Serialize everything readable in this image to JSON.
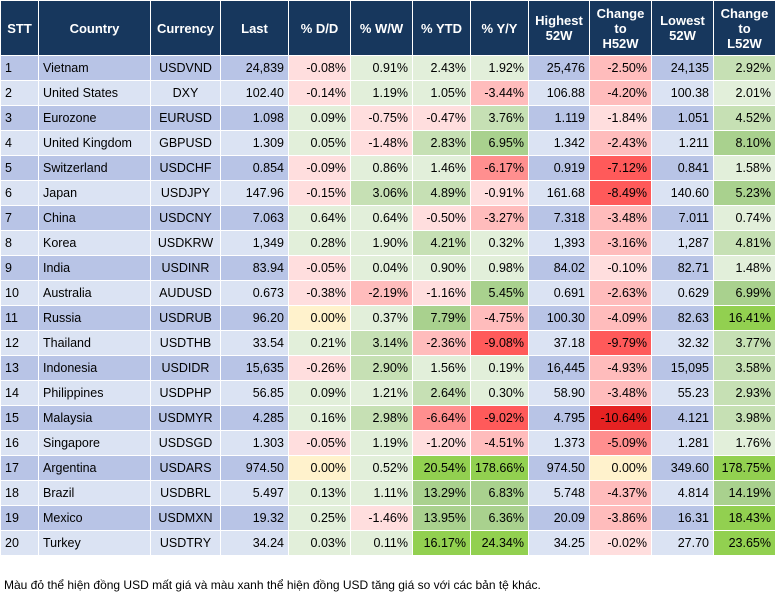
{
  "columns": [
    "STT",
    "Country",
    "Currency",
    "Last",
    "% D/D",
    "% W/W",
    "% YTD",
    "% Y/Y",
    "Highest\n52W",
    "Change\nto\nH52W",
    "Lowest\n52W",
    "Change\nto\nL52W"
  ],
  "rows": [
    {
      "stt": "1",
      "country": "Vietnam",
      "currency": "USDVND",
      "last": "24,839",
      "dd": "-0.08%",
      "ww": "0.91%",
      "ytd": "2.43%",
      "yy": "1.92%",
      "high": "25,476",
      "chigh": "-2.50%",
      "low": "24,135",
      "clow": "2.92%"
    },
    {
      "stt": "2",
      "country": "United States",
      "currency": "DXY",
      "last": "102.40",
      "dd": "-0.14%",
      "ww": "1.19%",
      "ytd": "1.05%",
      "yy": "-3.44%",
      "high": "106.88",
      "chigh": "-4.20%",
      "low": "100.38",
      "clow": "2.01%"
    },
    {
      "stt": "3",
      "country": "Eurozone",
      "currency": "EURUSD",
      "last": "1.098",
      "dd": "0.09%",
      "ww": "-0.75%",
      "ytd": "-0.47%",
      "yy": "3.76%",
      "high": "1.119",
      "chigh": "-1.84%",
      "low": "1.051",
      "clow": "4.52%"
    },
    {
      "stt": "4",
      "country": "United Kingdom",
      "currency": "GBPUSD",
      "last": "1.309",
      "dd": "0.05%",
      "ww": "-1.48%",
      "ytd": "2.83%",
      "yy": "6.95%",
      "high": "1.342",
      "chigh": "-2.43%",
      "low": "1.211",
      "clow": "8.10%"
    },
    {
      "stt": "5",
      "country": "Switzerland",
      "currency": "USDCHF",
      "last": "0.854",
      "dd": "-0.09%",
      "ww": "0.86%",
      "ytd": "1.46%",
      "yy": "-6.17%",
      "high": "0.919",
      "chigh": "-7.12%",
      "low": "0.841",
      "clow": "1.58%"
    },
    {
      "stt": "6",
      "country": "Japan",
      "currency": "USDJPY",
      "last": "147.96",
      "dd": "-0.15%",
      "ww": "3.06%",
      "ytd": "4.89%",
      "yy": "-0.91%",
      "high": "161.68",
      "chigh": "-8.49%",
      "low": "140.60",
      "clow": "5.23%"
    },
    {
      "stt": "7",
      "country": "China",
      "currency": "USDCNY",
      "last": "7.063",
      "dd": "0.64%",
      "ww": "0.64%",
      "ytd": "-0.50%",
      "yy": "-3.27%",
      "high": "7.318",
      "chigh": "-3.48%",
      "low": "7.011",
      "clow": "0.74%"
    },
    {
      "stt": "8",
      "country": "Korea",
      "currency": "USDKRW",
      "last": "1,349",
      "dd": "0.28%",
      "ww": "1.90%",
      "ytd": "4.21%",
      "yy": "0.32%",
      "high": "1,393",
      "chigh": "-3.16%",
      "low": "1,287",
      "clow": "4.81%"
    },
    {
      "stt": "9",
      "country": "India",
      "currency": "USDINR",
      "last": "83.94",
      "dd": "-0.05%",
      "ww": "0.04%",
      "ytd": "0.90%",
      "yy": "0.98%",
      "high": "84.02",
      "chigh": "-0.10%",
      "low": "82.71",
      "clow": "1.48%"
    },
    {
      "stt": "10",
      "country": "Australia",
      "currency": "AUDUSD",
      "last": "0.673",
      "dd": "-0.38%",
      "ww": "-2.19%",
      "ytd": "-1.16%",
      "yy": "5.45%",
      "high": "0.691",
      "chigh": "-2.63%",
      "low": "0.629",
      "clow": "6.99%"
    },
    {
      "stt": "11",
      "country": "Russia",
      "currency": "USDRUB",
      "last": "96.20",
      "dd": "0.00%",
      "ww": "0.37%",
      "ytd": "7.79%",
      "yy": "-4.75%",
      "high": "100.30",
      "chigh": "-4.09%",
      "low": "82.63",
      "clow": "16.41%"
    },
    {
      "stt": "12",
      "country": "Thailand",
      "currency": "USDTHB",
      "last": "33.54",
      "dd": "0.21%",
      "ww": "3.14%",
      "ytd": "-2.36%",
      "yy": "-9.08%",
      "high": "37.18",
      "chigh": "-9.79%",
      "low": "32.32",
      "clow": "3.77%"
    },
    {
      "stt": "13",
      "country": "Indonesia",
      "currency": "USDIDR",
      "last": "15,635",
      "dd": "-0.26%",
      "ww": "2.90%",
      "ytd": "1.56%",
      "yy": "0.19%",
      "high": "16,445",
      "chigh": "-4.93%",
      "low": "15,095",
      "clow": "3.58%"
    },
    {
      "stt": "14",
      "country": "Philippines",
      "currency": "USDPHP",
      "last": "56.85",
      "dd": "0.09%",
      "ww": "1.21%",
      "ytd": "2.64%",
      "yy": "0.30%",
      "high": "58.90",
      "chigh": "-3.48%",
      "low": "55.23",
      "clow": "2.93%"
    },
    {
      "stt": "15",
      "country": "Malaysia",
      "currency": "USDMYR",
      "last": "4.285",
      "dd": "0.16%",
      "ww": "2.98%",
      "ytd": "-6.64%",
      "yy": "-9.02%",
      "high": "4.795",
      "chigh": "-10.64%",
      "low": "4.121",
      "clow": "3.98%"
    },
    {
      "stt": "16",
      "country": "Singapore",
      "currency": "USDSGD",
      "last": "1.303",
      "dd": "-0.05%",
      "ww": "1.19%",
      "ytd": "-1.20%",
      "yy": "-4.51%",
      "high": "1.373",
      "chigh": "-5.09%",
      "low": "1.281",
      "clow": "1.76%"
    },
    {
      "stt": "17",
      "country": "Argentina",
      "currency": "USDARS",
      "last": "974.50",
      "dd": "0.00%",
      "ww": "0.52%",
      "ytd": "20.54%",
      "yy": "178.66%",
      "high": "974.50",
      "chigh": "0.00%",
      "low": "349.60",
      "clow": "178.75%"
    },
    {
      "stt": "18",
      "country": "Brazil",
      "currency": "USDBRL",
      "last": "5.497",
      "dd": "0.13%",
      "ww": "1.11%",
      "ytd": "13.29%",
      "yy": "6.83%",
      "high": "5.748",
      "chigh": "-4.37%",
      "low": "4.814",
      "clow": "14.19%"
    },
    {
      "stt": "19",
      "country": "Mexico",
      "currency": "USDMXN",
      "last": "19.32",
      "dd": "0.25%",
      "ww": "-1.46%",
      "ytd": "13.95%",
      "yy": "6.36%",
      "high": "20.09",
      "chigh": "-3.86%",
      "low": "16.31",
      "clow": "18.43%"
    },
    {
      "stt": "20",
      "country": "Turkey",
      "currency": "USDTRY",
      "last": "34.24",
      "dd": "0.03%",
      "ww": "0.11%",
      "ytd": "16.17%",
      "yy": "24.34%",
      "high": "34.25",
      "chigh": "-0.02%",
      "low": "27.70",
      "clow": "23.65%"
    }
  ],
  "note": "Màu đỏ thể hiện đồng USD mất giá và màu xanh thể hiện đồng USD tăng giá so với các bản tệ khác.",
  "colors": {
    "header_bg": "#17375d",
    "row_odd": "#b8c4e6",
    "row_even": "#dbe3f3",
    "green_strong": "#92d050",
    "red_strong": "#e52222"
  }
}
